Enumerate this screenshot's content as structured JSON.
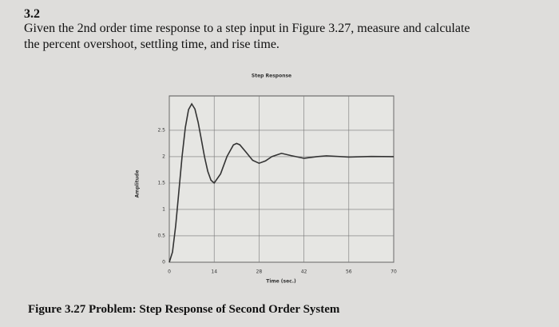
{
  "problem": {
    "number": "3.2",
    "lines": [
      "Given the 2nd order time response to a step input in Figure 3.27, measure and calculate",
      "the percent overshoot, settling time, and rise time."
    ]
  },
  "caption": "Figure 3.27 Problem: Step Response of Second Order System",
  "chart_data": {
    "type": "line",
    "title": "Step Response",
    "x_label": "Time (sec.)",
    "y_label": "Amplitude",
    "x": [
      0,
      1,
      2,
      3,
      4,
      5,
      6,
      7,
      8,
      9,
      10,
      11,
      12,
      13,
      14,
      16,
      18,
      20,
      21,
      22,
      24,
      26,
      28,
      30,
      32,
      35,
      38,
      42,
      46,
      49,
      56,
      63,
      70
    ],
    "values": [
      0,
      0.194,
      0.696,
      1.351,
      2.011,
      2.551,
      2.891,
      3.0,
      2.902,
      2.65,
      2.324,
      1.993,
      1.723,
      1.554,
      1.5,
      1.674,
      2.004,
      2.223,
      2.25,
      2.225,
      2.081,
      1.931,
      1.875,
      1.919,
      2.001,
      2.063,
      2.02,
      1.969,
      2.0,
      2.016,
      1.992,
      2.004,
      2.0
    ],
    "color": "#333333",
    "xlim": [
      0,
      70
    ],
    "xticks": [
      0,
      14,
      28,
      42,
      56,
      70
    ],
    "ylim": [
      0,
      3.15
    ],
    "yticks": [
      0,
      0.5,
      1,
      1.5,
      2,
      2.5
    ],
    "grid": true
  }
}
